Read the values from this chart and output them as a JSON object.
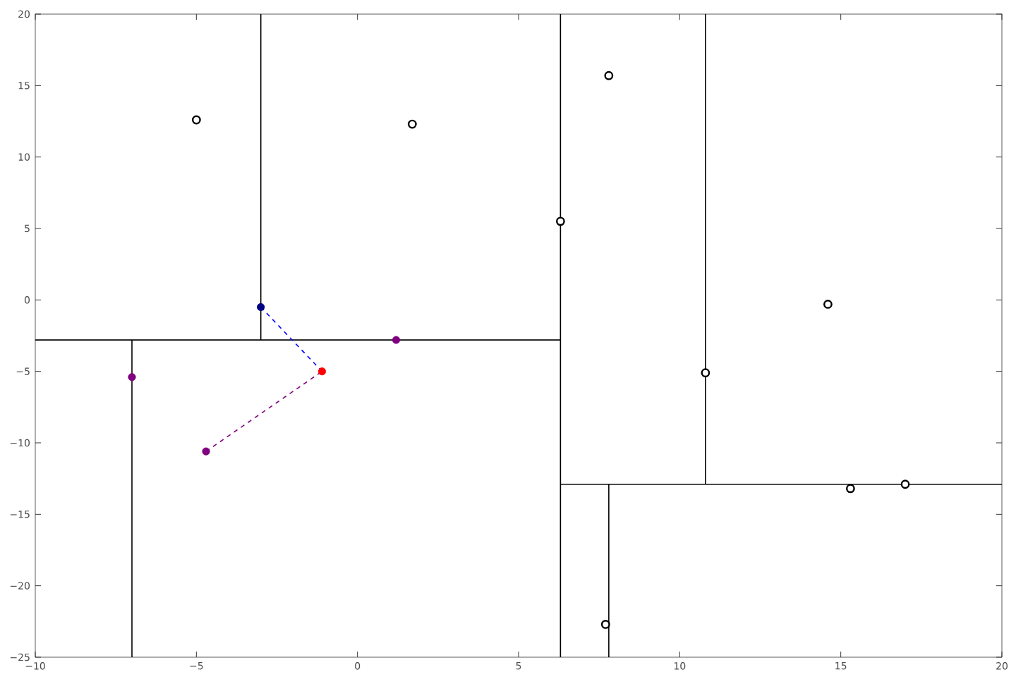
{
  "chart_data": {
    "type": "scatter",
    "xlim": [
      -10,
      20
    ],
    "ylim": [
      -25,
      20
    ],
    "xticks": [
      {
        "value": -10,
        "label": "−10"
      },
      {
        "value": -5,
        "label": "−5"
      },
      0,
      5,
      10,
      15,
      20
    ],
    "yticks": [
      {
        "value": -25,
        "label": "−25"
      },
      {
        "value": -20,
        "label": "−20"
      },
      {
        "value": -15,
        "label": "−15"
      },
      {
        "value": -10,
        "label": "−10"
      },
      {
        "value": -5,
        "label": "−5"
      },
      0,
      5,
      10,
      15,
      20
    ],
    "grid": false,
    "series": [
      {
        "type": "line",
        "marker": "none",
        "color": "#000000",
        "x": [
          6.3,
          6.3
        ],
        "values": [
          -25,
          20
        ]
      },
      {
        "type": "line",
        "marker": "none",
        "color": "#000000",
        "x": [
          -10,
          6.3
        ],
        "values": [
          -2.8,
          -2.8
        ]
      },
      {
        "type": "line",
        "marker": "none",
        "color": "#000000",
        "x": [
          -3,
          -3
        ],
        "values": [
          -2.8,
          20
        ]
      },
      {
        "type": "line",
        "marker": "none",
        "color": "#000000",
        "x": [
          -7,
          -7
        ],
        "values": [
          -25,
          -2.8
        ]
      },
      {
        "type": "line",
        "marker": "none",
        "color": "#000000",
        "x": [
          10.8,
          10.8
        ],
        "values": [
          -12.9,
          20
        ]
      },
      {
        "type": "line",
        "marker": "none",
        "color": "#000000",
        "x": [
          6.3,
          20
        ],
        "values": [
          -12.9,
          -12.9
        ]
      },
      {
        "type": "line",
        "marker": "none",
        "color": "#000000",
        "x": [
          7.8,
          7.8
        ],
        "values": [
          -25,
          -12.9
        ]
      },
      {
        "type": "line",
        "marker": "none",
        "color": "#0000ff",
        "line_style": "dashed",
        "x": [
          -3,
          -1.1
        ],
        "values": [
          -0.5,
          -5
        ]
      },
      {
        "type": "line",
        "marker": "none",
        "color": "#800080",
        "line_style": "dashed",
        "x": [
          -4.7,
          -1.1
        ],
        "values": [
          -10.6,
          -5
        ]
      },
      {
        "marker": "circle",
        "color": "#000000",
        "x": [
          -5,
          1.7,
          7.8,
          6.3,
          14.6,
          10.8,
          15.3,
          17,
          7.7
        ],
        "values": [
          12.6,
          12.3,
          15.7,
          5.5,
          -0.3,
          -5.1,
          -13.2,
          -12.9,
          -22.7
        ]
      },
      {
        "marker": "circle",
        "color": "#800080",
        "x": [
          1.2,
          -7,
          -4.7
        ],
        "values": [
          -2.8,
          -5.4,
          -10.6
        ]
      },
      {
        "marker": "circle",
        "color": "#000080",
        "x": [
          -3
        ],
        "values": [
          -0.5
        ]
      },
      {
        "marker": "circle",
        "color": "#ff0000",
        "x": [
          -1.1
        ],
        "values": [
          -5
        ]
      }
    ]
  }
}
